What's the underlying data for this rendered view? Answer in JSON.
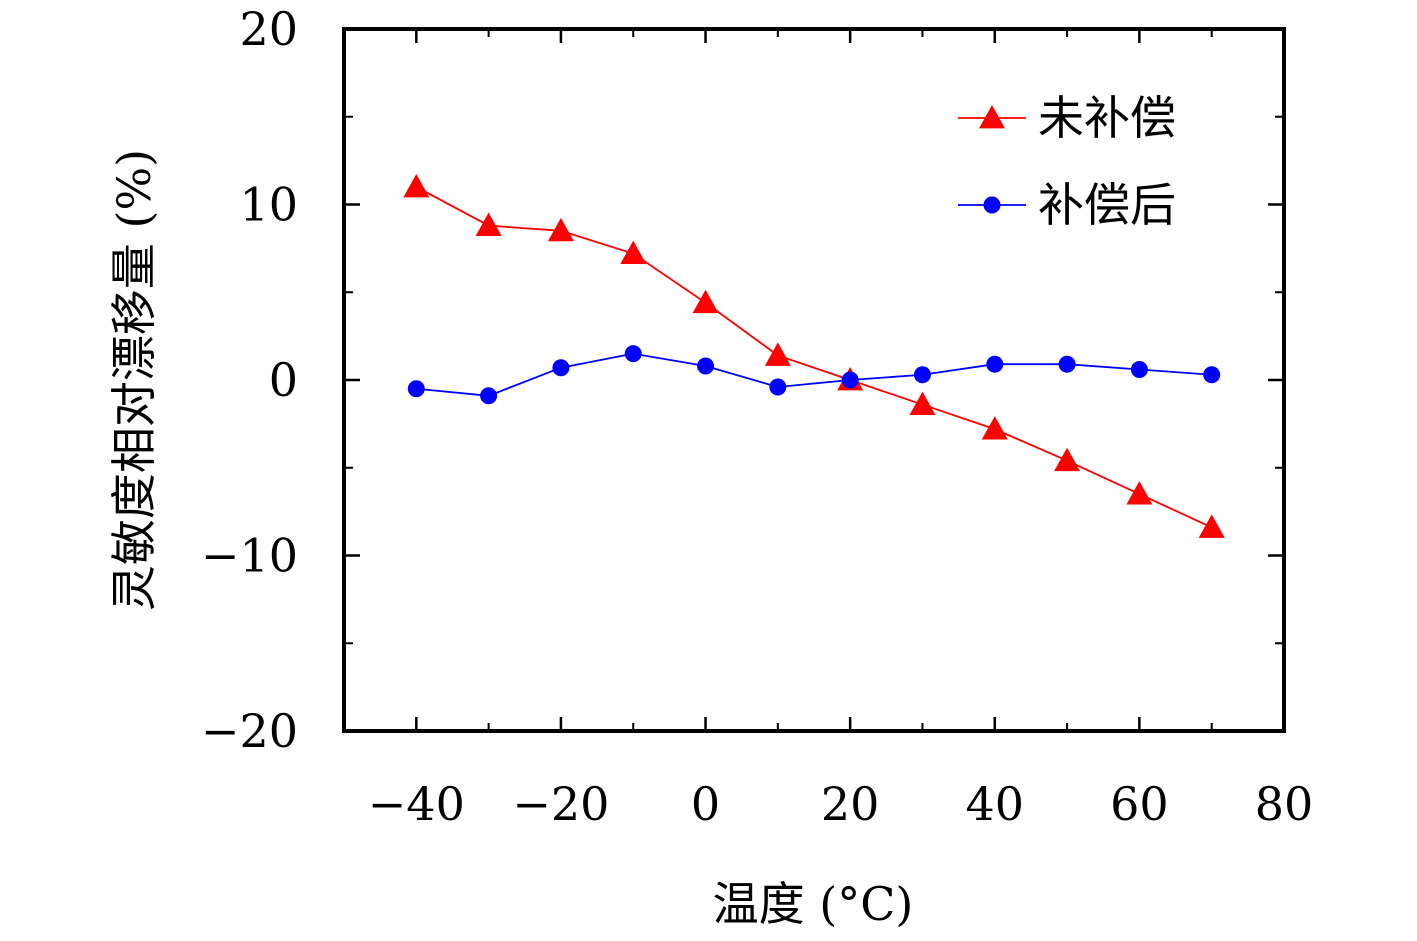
{
  "chart_data": {
    "type": "line",
    "title": "",
    "xlabel": "温度 (°C)",
    "ylabel": "灵敏度相对漂移量 (%)",
    "xlim": [
      -50,
      80
    ],
    "ylim": [
      -20,
      20
    ],
    "x_ticks": [
      -40,
      -20,
      0,
      20,
      40,
      60,
      80
    ],
    "x_tick_labels": [
      "−40",
      "−20",
      "0",
      "20",
      "40",
      "60",
      "80"
    ],
    "y_ticks": [
      -20,
      -10,
      0,
      10,
      20
    ],
    "y_tick_labels": [
      "−20",
      "−10",
      "0",
      "10",
      "20"
    ],
    "x": [
      -40,
      -30,
      -20,
      -10,
      0,
      10,
      20,
      30,
      40,
      50,
      60,
      70
    ],
    "series": [
      {
        "name": "未补偿",
        "color": "#ff0000",
        "marker": "triangle",
        "values": [
          11.0,
          8.8,
          8.5,
          7.2,
          4.4,
          1.4,
          0.0,
          -1.4,
          -2.8,
          -4.6,
          -6.5,
          -8.4
        ]
      },
      {
        "name": "补偿后",
        "color": "#0000ff",
        "marker": "circle",
        "values": [
          -0.5,
          -0.9,
          0.7,
          1.5,
          0.8,
          -0.4,
          0.0,
          0.3,
          0.9,
          0.9,
          0.6,
          0.3
        ]
      }
    ],
    "legend_position": "top-right",
    "grid": false
  }
}
